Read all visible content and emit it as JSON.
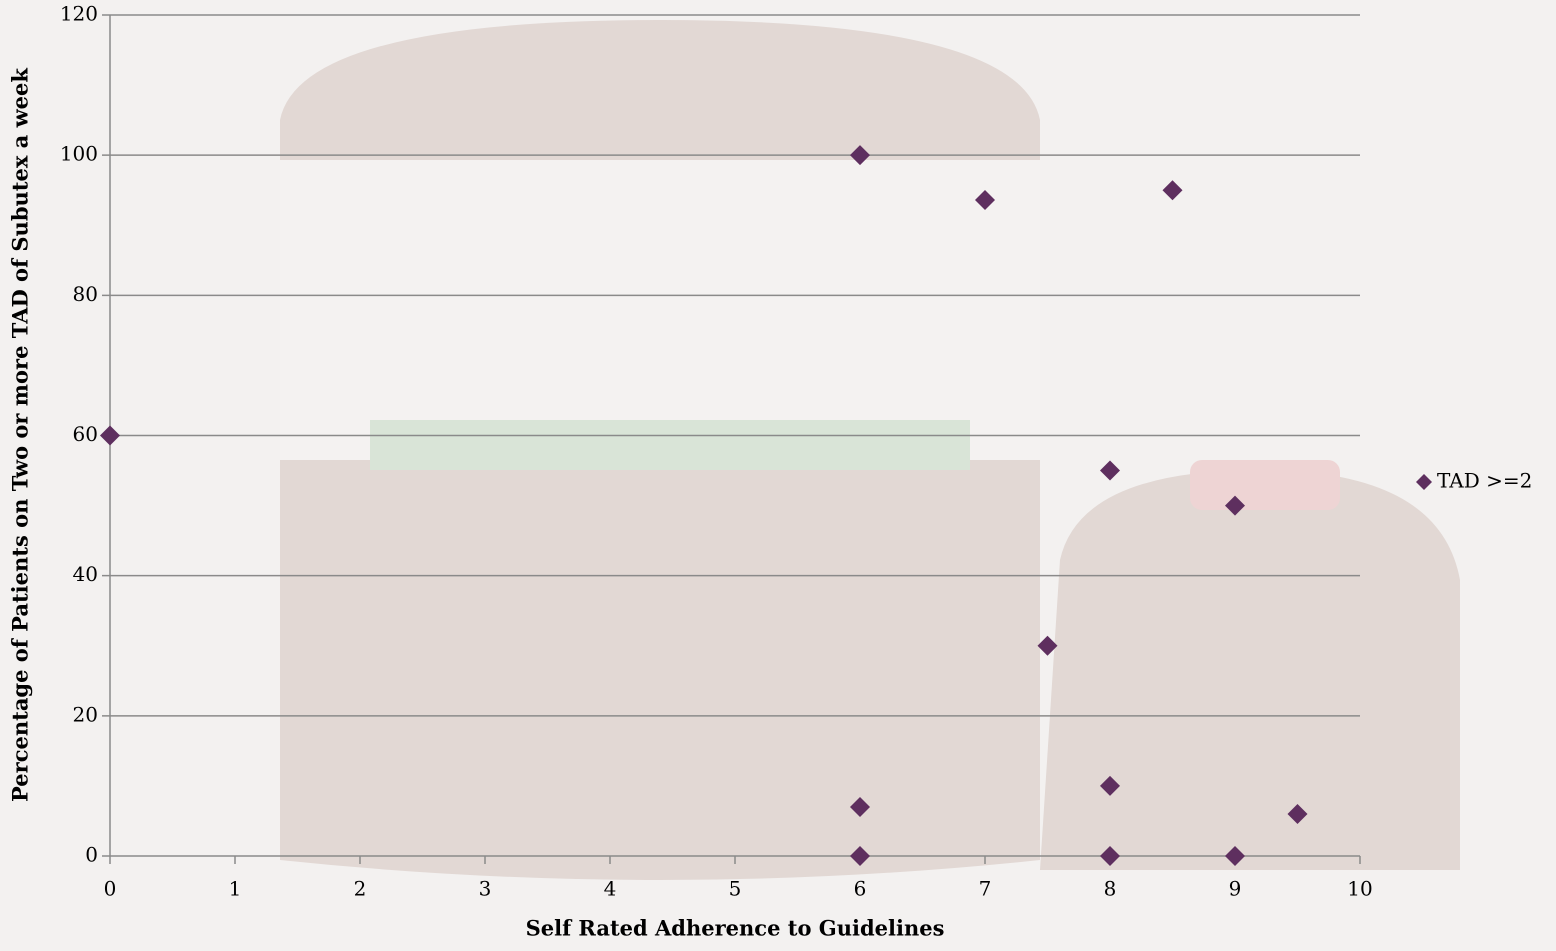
{
  "chart_data": {
    "type": "scatter",
    "x_label": "Self Rated Adherence  to Guidelines",
    "y_label": "Percentage of Patients on Two or more TAD of Subutex a week",
    "series": [
      {
        "name": "TAD >=2",
        "color": "#5e2f5f",
        "x": [
          0,
          6,
          7,
          8.5,
          8,
          9,
          7.5,
          8,
          6,
          9.5,
          6,
          8,
          9
        ],
        "values": [
          60,
          100,
          93.6,
          95,
          55,
          50,
          30,
          10,
          7,
          6,
          0,
          0,
          0
        ]
      }
    ],
    "xlim": [
      0,
      10
    ],
    "xticks": [
      0,
      1,
      2,
      3,
      4,
      5,
      6,
      7,
      8,
      9,
      10
    ],
    "ylim": [
      0,
      120
    ],
    "yticks": [
      0,
      20,
      40,
      60,
      80,
      100,
      120
    ],
    "grid": true,
    "legend": "right"
  }
}
